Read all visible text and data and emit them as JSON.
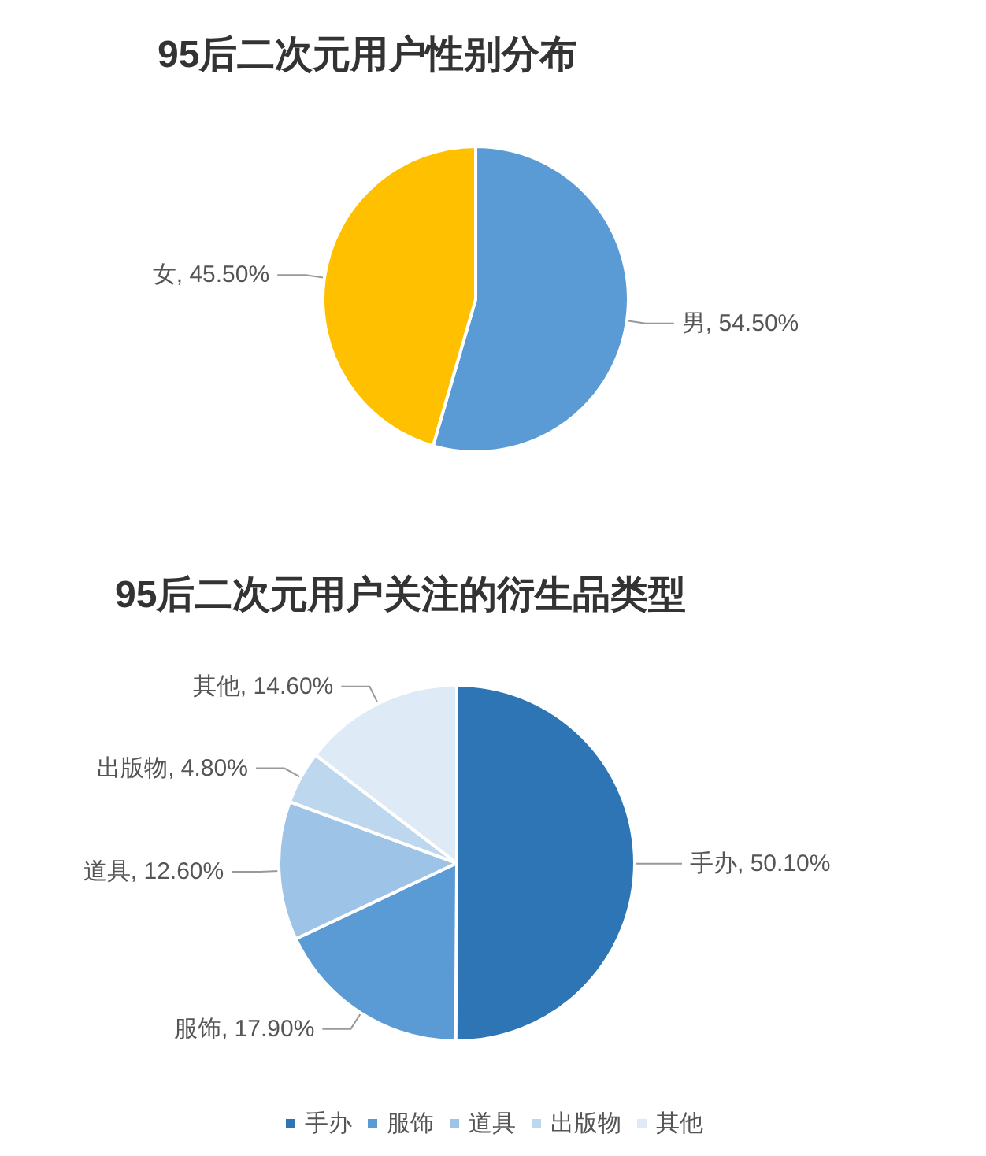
{
  "chart_data": [
    {
      "type": "pie",
      "title": "95后二次元用户性别分布",
      "categories": [
        "男",
        "女"
      ],
      "values": [
        54.5,
        45.5
      ],
      "value_labels": [
        ", 54.50%",
        ", 45.50%"
      ],
      "colors": [
        "#5b9bd5",
        "#ffc000"
      ],
      "legend": false
    },
    {
      "type": "pie",
      "title": "95后二次元用户关注的衍生品类型",
      "categories": [
        "手办",
        "服饰",
        "道具",
        "出版物",
        "其他"
      ],
      "values": [
        50.1,
        17.9,
        12.6,
        4.8,
        14.6
      ],
      "value_labels": [
        ", 50.10%",
        ", 17.90%",
        ", 12.60%",
        ", 4.80%",
        ", 14.60%"
      ],
      "colors": [
        "#2e75b6",
        "#5b9bd5",
        "#9dc3e6",
        "#bdd7ee",
        "#deebf7"
      ],
      "legend": "bottom"
    }
  ]
}
